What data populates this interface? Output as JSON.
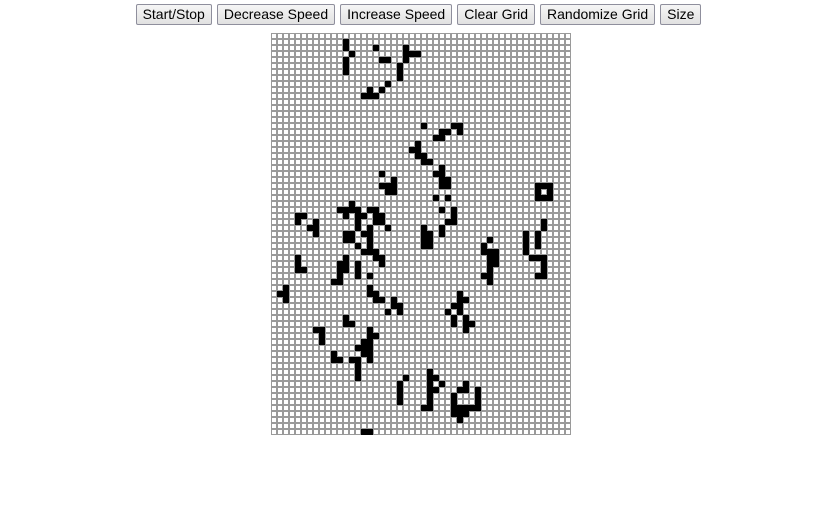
{
  "toolbar": {
    "buttons": [
      {
        "name": "start-stop-button",
        "label": "Start/Stop"
      },
      {
        "name": "decrease-speed-button",
        "label": "Decrease Speed"
      },
      {
        "name": "increase-speed-button",
        "label": "Increase Speed"
      },
      {
        "name": "clear-grid-button",
        "label": "Clear Grid"
      },
      {
        "name": "randomize-grid-button",
        "label": "Randomize Grid"
      },
      {
        "name": "size-button",
        "label": "Size"
      }
    ]
  },
  "grid": {
    "rows": 67,
    "cols": 50,
    "alive_color": "#000000",
    "dead_color": "#ffffff",
    "line_color": "#9a9a9a",
    "alive": [
      [
        1,
        12
      ],
      [
        2,
        12
      ],
      [
        2,
        17
      ],
      [
        2,
        22
      ],
      [
        3,
        13
      ],
      [
        3,
        22
      ],
      [
        3,
        23
      ],
      [
        3,
        24
      ],
      [
        4,
        12
      ],
      [
        4,
        18
      ],
      [
        4,
        19
      ],
      [
        4,
        22
      ],
      [
        5,
        12
      ],
      [
        5,
        21
      ],
      [
        6,
        12
      ],
      [
        6,
        21
      ],
      [
        7,
        21
      ],
      [
        8,
        19
      ],
      [
        9,
        16
      ],
      [
        9,
        18
      ],
      [
        10,
        15
      ],
      [
        10,
        16
      ],
      [
        10,
        17
      ],
      [
        15,
        25
      ],
      [
        15,
        30
      ],
      [
        15,
        31
      ],
      [
        16,
        28
      ],
      [
        16,
        29
      ],
      [
        16,
        31
      ],
      [
        17,
        27
      ],
      [
        17,
        28
      ],
      [
        18,
        24
      ],
      [
        19,
        23
      ],
      [
        19,
        24
      ],
      [
        20,
        24
      ],
      [
        20,
        25
      ],
      [
        21,
        25
      ],
      [
        21,
        26
      ],
      [
        22,
        28
      ],
      [
        23,
        27
      ],
      [
        23,
        28
      ],
      [
        23,
        18
      ],
      [
        24,
        28
      ],
      [
        24,
        29
      ],
      [
        25,
        18
      ],
      [
        25,
        19
      ],
      [
        25,
        28
      ],
      [
        25,
        29
      ],
      [
        24,
        20
      ],
      [
        25,
        20
      ],
      [
        26,
        19
      ],
      [
        26,
        20
      ],
      [
        25,
        44
      ],
      [
        25,
        45
      ],
      [
        25,
        46
      ],
      [
        26,
        44
      ],
      [
        26,
        46
      ],
      [
        27,
        44
      ],
      [
        27,
        45
      ],
      [
        27,
        46
      ],
      [
        27,
        27
      ],
      [
        27,
        29
      ],
      [
        28,
        13
      ],
      [
        29,
        11
      ],
      [
        29,
        12
      ],
      [
        29,
        13
      ],
      [
        29,
        14
      ],
      [
        29,
        16
      ],
      [
        29,
        17
      ],
      [
        30,
        12
      ],
      [
        30,
        14
      ],
      [
        30,
        15
      ],
      [
        30,
        17
      ],
      [
        30,
        18
      ],
      [
        31,
        14
      ],
      [
        31,
        17
      ],
      [
        31,
        18
      ],
      [
        32,
        14
      ],
      [
        32,
        16
      ],
      [
        32,
        19
      ],
      [
        33,
        12
      ],
      [
        33,
        13
      ],
      [
        33,
        15
      ],
      [
        33,
        16
      ],
      [
        34,
        12
      ],
      [
        34,
        13
      ],
      [
        34,
        16
      ],
      [
        35,
        14
      ],
      [
        36,
        15
      ],
      [
        29,
        28
      ],
      [
        29,
        30
      ],
      [
        30,
        30
      ],
      [
        31,
        29
      ],
      [
        31,
        30
      ],
      [
        32,
        28
      ],
      [
        33,
        28
      ],
      [
        30,
        4
      ],
      [
        30,
        5
      ],
      [
        31,
        4
      ],
      [
        31,
        7
      ],
      [
        32,
        6
      ],
      [
        32,
        7
      ],
      [
        33,
        7
      ],
      [
        32,
        25
      ],
      [
        33,
        25
      ],
      [
        33,
        26
      ],
      [
        34,
        25
      ],
      [
        34,
        26
      ],
      [
        35,
        25
      ],
      [
        35,
        26
      ],
      [
        31,
        45
      ],
      [
        32,
        45
      ],
      [
        33,
        44
      ],
      [
        34,
        44
      ],
      [
        35,
        44
      ],
      [
        33,
        42
      ],
      [
        34,
        42
      ],
      [
        35,
        42
      ],
      [
        36,
        42
      ],
      [
        37,
        43
      ],
      [
        37,
        44
      ],
      [
        37,
        45
      ],
      [
        38,
        45
      ],
      [
        39,
        45
      ],
      [
        40,
        44
      ],
      [
        40,
        45
      ],
      [
        34,
        36
      ],
      [
        35,
        35
      ],
      [
        36,
        35
      ],
      [
        36,
        36
      ],
      [
        36,
        37
      ],
      [
        37,
        36
      ],
      [
        37,
        37
      ],
      [
        38,
        36
      ],
      [
        38,
        37
      ],
      [
        39,
        36
      ],
      [
        40,
        35
      ],
      [
        40,
        36
      ],
      [
        41,
        36
      ],
      [
        35,
        16
      ],
      [
        36,
        16
      ],
      [
        36,
        17
      ],
      [
        37,
        12
      ],
      [
        37,
        17
      ],
      [
        37,
        18
      ],
      [
        38,
        11
      ],
      [
        38,
        12
      ],
      [
        38,
        14
      ],
      [
        38,
        18
      ],
      [
        39,
        11
      ],
      [
        39,
        12
      ],
      [
        39,
        14
      ],
      [
        40,
        11
      ],
      [
        40,
        14
      ],
      [
        40,
        16
      ],
      [
        41,
        10
      ],
      [
        41,
        11
      ],
      [
        42,
        16
      ],
      [
        43,
        16
      ],
      [
        43,
        17
      ],
      [
        44,
        17
      ],
      [
        44,
        18
      ],
      [
        37,
        4
      ],
      [
        38,
        4
      ],
      [
        39,
        4
      ],
      [
        39,
        5
      ],
      [
        42,
        2
      ],
      [
        43,
        1
      ],
      [
        43,
        2
      ],
      [
        44,
        2
      ],
      [
        43,
        31
      ],
      [
        44,
        31
      ],
      [
        44,
        32
      ],
      [
        45,
        30
      ],
      [
        45,
        31
      ],
      [
        46,
        29
      ],
      [
        46,
        31
      ],
      [
        47,
        30
      ],
      [
        47,
        32
      ],
      [
        48,
        30
      ],
      [
        48,
        32
      ],
      [
        48,
        33
      ],
      [
        49,
        32
      ],
      [
        44,
        20
      ],
      [
        45,
        20
      ],
      [
        45,
        21
      ],
      [
        46,
        19
      ],
      [
        46,
        21
      ],
      [
        47,
        12
      ],
      [
        48,
        12
      ],
      [
        48,
        13
      ],
      [
        49,
        7
      ],
      [
        49,
        8
      ],
      [
        50,
        8
      ],
      [
        51,
        8
      ],
      [
        49,
        16
      ],
      [
        50,
        16
      ],
      [
        50,
        17
      ],
      [
        51,
        15
      ],
      [
        51,
        16
      ],
      [
        52,
        14
      ],
      [
        52,
        15
      ],
      [
        52,
        16
      ],
      [
        53,
        15
      ],
      [
        53,
        16
      ],
      [
        54,
        13
      ],
      [
        54,
        14
      ],
      [
        54,
        16
      ],
      [
        55,
        14
      ],
      [
        53,
        10
      ],
      [
        54,
        10
      ],
      [
        54,
        11
      ],
      [
        56,
        14
      ],
      [
        57,
        14
      ],
      [
        56,
        26
      ],
      [
        57,
        26
      ],
      [
        57,
        27
      ],
      [
        58,
        26
      ],
      [
        58,
        28
      ],
      [
        59,
        26
      ],
      [
        59,
        27
      ],
      [
        60,
        26
      ],
      [
        57,
        22
      ],
      [
        58,
        21
      ],
      [
        59,
        21
      ],
      [
        60,
        21
      ],
      [
        61,
        21
      ],
      [
        58,
        32
      ],
      [
        59,
        31
      ],
      [
        59,
        32
      ],
      [
        60,
        30
      ],
      [
        61,
        30
      ],
      [
        62,
        30
      ],
      [
        62,
        31
      ],
      [
        62,
        32
      ],
      [
        62,
        33
      ],
      [
        63,
        30
      ],
      [
        63,
        31
      ],
      [
        63,
        32
      ],
      [
        64,
        31
      ],
      [
        59,
        34
      ],
      [
        60,
        34
      ],
      [
        61,
        34
      ],
      [
        62,
        34
      ],
      [
        61,
        26
      ],
      [
        62,
        25
      ],
      [
        62,
        26
      ],
      [
        66,
        15
      ],
      [
        66,
        16
      ]
    ]
  }
}
